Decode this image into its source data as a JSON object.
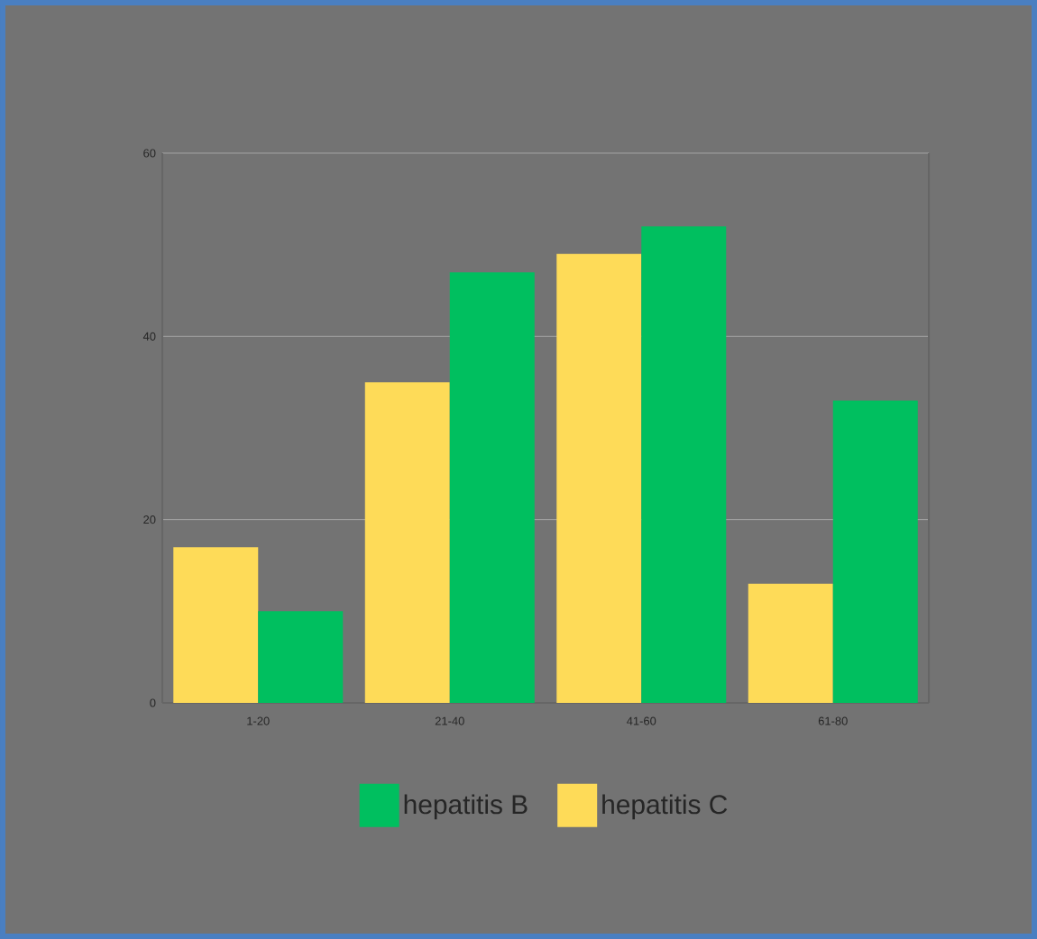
{
  "chart_data": {
    "type": "bar",
    "categories": [
      "1-20",
      "21-40",
      "41-60",
      "61-80"
    ],
    "series": [
      {
        "name": "hepatitis B",
        "color": "#00bf5f",
        "values": [
          10,
          47,
          52,
          33
        ]
      },
      {
        "name": "hepatitis C",
        "color": "#fedb58",
        "values": [
          17,
          35,
          49,
          13
        ]
      }
    ],
    "ylim": [
      0,
      60
    ],
    "yticks": [
      0,
      20,
      40,
      60
    ],
    "grid": "y",
    "legend": "bottom"
  }
}
